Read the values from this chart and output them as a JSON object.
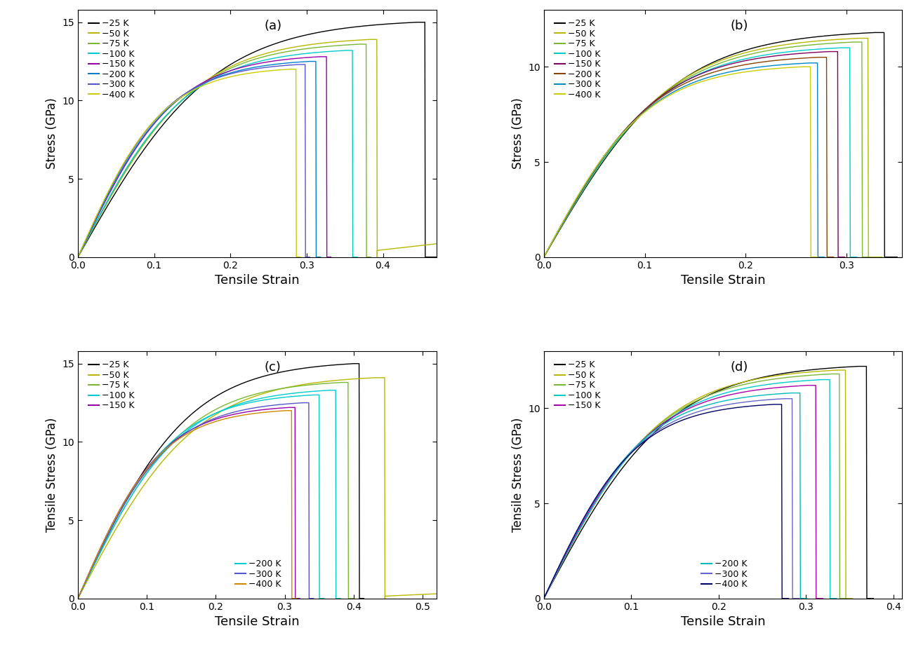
{
  "panels": [
    {
      "label": "(a)",
      "xlabel": "Tensile Strain",
      "ylabel": "Stress (GPa)",
      "xlim": [
        0,
        0.47
      ],
      "ylim": [
        0,
        15.8
      ],
      "xticks": [
        0,
        0.1,
        0.2,
        0.3,
        0.4
      ],
      "yticks": [
        0,
        5,
        10,
        15
      ],
      "legend_split": false,
      "curves": [
        {
          "label": "25 K",
          "color": "#000000",
          "peak_x": 0.445,
          "peak_y": 15.0,
          "frac_x": 0.455,
          "post_x": 0.47,
          "post_y": 0.0
        },
        {
          "label": "50 K",
          "color": "#b8b800",
          "peak_x": 0.383,
          "peak_y": 13.9,
          "frac_x": 0.392,
          "post_x": 0.47,
          "post_y": 0.85
        },
        {
          "label": "75 K",
          "color": "#7ab832",
          "peak_x": 0.37,
          "peak_y": 13.6,
          "frac_x": 0.378,
          "post_x": 0.384,
          "post_y": 0.0
        },
        {
          "label": "100 K",
          "color": "#00cccc",
          "peak_x": 0.352,
          "peak_y": 13.2,
          "frac_x": 0.36,
          "post_x": 0.366,
          "post_y": 0.0
        },
        {
          "label": "150 K",
          "color": "#9900aa",
          "peak_x": 0.318,
          "peak_y": 12.8,
          "frac_x": 0.326,
          "post_x": 0.332,
          "post_y": 0.0
        },
        {
          "label": "200 K",
          "color": "#0080cc",
          "peak_x": 0.304,
          "peak_y": 12.5,
          "frac_x": 0.312,
          "post_x": 0.318,
          "post_y": 0.0
        },
        {
          "label": "300 K",
          "color": "#5555cc",
          "peak_x": 0.29,
          "peak_y": 12.3,
          "frac_x": 0.298,
          "post_x": 0.304,
          "post_y": 0.0
        },
        {
          "label": "400 K",
          "color": "#cccc00",
          "peak_x": 0.278,
          "peak_y": 12.0,
          "frac_x": 0.286,
          "post_x": 0.292,
          "post_y": 0.0
        }
      ]
    },
    {
      "label": "(b)",
      "xlabel": "Tensile Strain",
      "ylabel": "Stress (GPa)",
      "xlim": [
        0,
        0.355
      ],
      "ylim": [
        0,
        13.0
      ],
      "xticks": [
        0,
        0.1,
        0.2,
        0.3
      ],
      "yticks": [
        0,
        5,
        10
      ],
      "legend_split": false,
      "curves": [
        {
          "label": "25 K",
          "color": "#000000",
          "peak_x": 0.328,
          "peak_y": 11.8,
          "frac_x": 0.337,
          "post_x": 0.35,
          "post_y": 0.0
        },
        {
          "label": "50 K",
          "color": "#b8b800",
          "peak_x": 0.312,
          "peak_y": 11.5,
          "frac_x": 0.321,
          "post_x": 0.335,
          "post_y": 0.0
        },
        {
          "label": "75 K",
          "color": "#7ab832",
          "peak_x": 0.307,
          "peak_y": 11.3,
          "frac_x": 0.315,
          "post_x": 0.322,
          "post_y": 0.0
        },
        {
          "label": "100 K",
          "color": "#00cccc",
          "peak_x": 0.295,
          "peak_y": 11.0,
          "frac_x": 0.303,
          "post_x": 0.31,
          "post_y": 0.0
        },
        {
          "label": "150 K",
          "color": "#800060",
          "peak_x": 0.283,
          "peak_y": 10.8,
          "frac_x": 0.291,
          "post_x": 0.298,
          "post_y": 0.0
        },
        {
          "label": "200 K",
          "color": "#884400",
          "peak_x": 0.272,
          "peak_y": 10.5,
          "frac_x": 0.28,
          "post_x": 0.287,
          "post_y": 0.0
        },
        {
          "label": "300 K",
          "color": "#0088cc",
          "peak_x": 0.263,
          "peak_y": 10.2,
          "frac_x": 0.271,
          "post_x": 0.278,
          "post_y": 0.0
        },
        {
          "label": "400 K",
          "color": "#cccc00",
          "peak_x": 0.256,
          "peak_y": 10.0,
          "frac_x": 0.264,
          "post_x": 0.271,
          "post_y": 0.0
        }
      ]
    },
    {
      "label": "(c)",
      "xlabel": "Tensile Strain",
      "ylabel": "Tensile Stress (GPa)",
      "xlim": [
        0,
        0.52
      ],
      "ylim": [
        0,
        15.8
      ],
      "xticks": [
        0,
        0.1,
        0.2,
        0.3,
        0.4,
        0.5
      ],
      "yticks": [
        0,
        5,
        10,
        15
      ],
      "legend_split": true,
      "curves": [
        {
          "label": "25 K",
          "color": "#000000",
          "peak_x": 0.4,
          "peak_y": 15.0,
          "frac_x": 0.408,
          "post_x": 0.415,
          "post_y": 0.0
        },
        {
          "label": "50 K",
          "color": "#b8b800",
          "peak_x": 0.43,
          "peak_y": 14.1,
          "frac_x": 0.445,
          "post_x": 0.52,
          "post_y": 0.3
        },
        {
          "label": "75 K",
          "color": "#7ab832",
          "peak_x": 0.383,
          "peak_y": 13.8,
          "frac_x": 0.392,
          "post_x": 0.4,
          "post_y": 0.0
        },
        {
          "label": "100 K",
          "color": "#00cccc",
          "peak_x": 0.366,
          "peak_y": 13.3,
          "frac_x": 0.374,
          "post_x": 0.381,
          "post_y": 0.0
        },
        {
          "label": "150 K",
          "color": "#9900aa",
          "peak_x": 0.307,
          "peak_y": 12.2,
          "frac_x": 0.315,
          "post_x": 0.322,
          "post_y": 0.0
        },
        {
          "label": "200 K",
          "color": "#00cccc",
          "peak_x": 0.342,
          "peak_y": 13.0,
          "frac_x": 0.35,
          "post_x": 0.357,
          "post_y": 0.0
        },
        {
          "label": "300 K",
          "color": "#5555cc",
          "peak_x": 0.327,
          "peak_y": 12.5,
          "frac_x": 0.335,
          "post_x": 0.342,
          "post_y": 0.0
        },
        {
          "label": "400 K",
          "color": "#cc8800",
          "peak_x": 0.302,
          "peak_y": 12.0,
          "frac_x": 0.31,
          "post_x": 0.317,
          "post_y": 0.0
        }
      ]
    },
    {
      "label": "(d)",
      "xlabel": "Tensile Strain",
      "ylabel": "Tensile Stress (GPa)",
      "xlim": [
        0,
        0.41
      ],
      "ylim": [
        0,
        13.0
      ],
      "xticks": [
        0,
        0.1,
        0.2,
        0.3,
        0.4
      ],
      "yticks": [
        0,
        5,
        10
      ],
      "legend_split": true,
      "curves": [
        {
          "label": "25 K",
          "color": "#000000",
          "peak_x": 0.36,
          "peak_y": 12.2,
          "frac_x": 0.369,
          "post_x": 0.377,
          "post_y": 0.0
        },
        {
          "label": "50 K",
          "color": "#b8b800",
          "peak_x": 0.336,
          "peak_y": 12.0,
          "frac_x": 0.345,
          "post_x": 0.353,
          "post_y": 0.0
        },
        {
          "label": "75 K",
          "color": "#7ab832",
          "peak_x": 0.329,
          "peak_y": 11.8,
          "frac_x": 0.338,
          "post_x": 0.346,
          "post_y": 0.0
        },
        {
          "label": "100 K",
          "color": "#00cccc",
          "peak_x": 0.318,
          "peak_y": 11.5,
          "frac_x": 0.327,
          "post_x": 0.335,
          "post_y": 0.0
        },
        {
          "label": "150 K",
          "color": "#aa00aa",
          "peak_x": 0.302,
          "peak_y": 11.2,
          "frac_x": 0.311,
          "post_x": 0.319,
          "post_y": 0.0
        },
        {
          "label": "200 K",
          "color": "#00bbbb",
          "peak_x": 0.284,
          "peak_y": 10.8,
          "frac_x": 0.293,
          "post_x": 0.301,
          "post_y": 0.0
        },
        {
          "label": "300 K",
          "color": "#6666cc",
          "peak_x": 0.275,
          "peak_y": 10.5,
          "frac_x": 0.284,
          "post_x": 0.292,
          "post_y": 0.0
        },
        {
          "label": "400 K",
          "color": "#000066",
          "peak_x": 0.263,
          "peak_y": 10.2,
          "frac_x": 0.272,
          "post_x": 0.28,
          "post_y": 0.0
        }
      ]
    }
  ]
}
